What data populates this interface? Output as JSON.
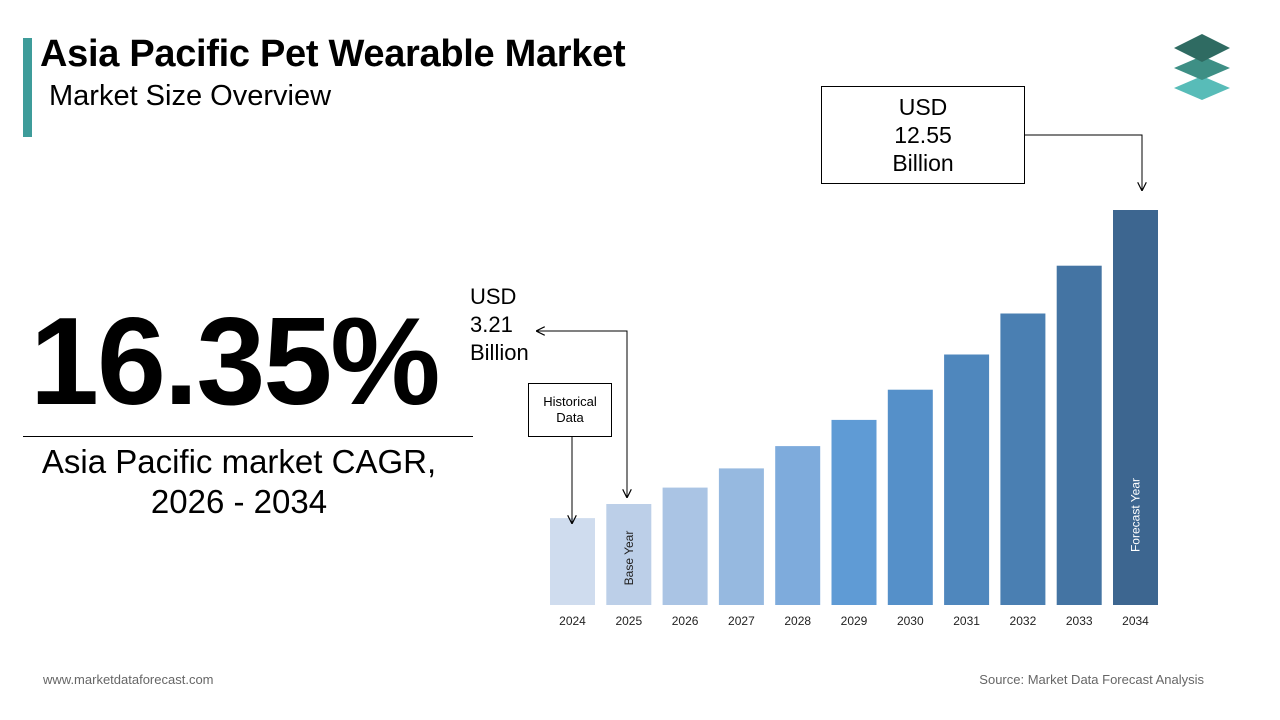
{
  "header": {
    "title": "Asia Pacific Pet Wearable Market",
    "subtitle": "Market Size Overview"
  },
  "logo": {
    "icon": "stacked-layers-logo-icon",
    "colors": [
      "#2f6b62",
      "#3e8f85",
      "#58bcb8"
    ]
  },
  "cagr": {
    "value": "16.35%",
    "label_line1": "Asia Pacific market CAGR,",
    "label_line2": "2026 - 2034"
  },
  "callouts": {
    "final": {
      "line1": "USD",
      "line2": "12.55",
      "line3": "Billion"
    },
    "base": {
      "line1": "USD",
      "line2": "3.21",
      "line3": "Billion"
    },
    "historical": {
      "line1": "Historical",
      "line2": "Data"
    }
  },
  "footer": {
    "website": "www.marketdataforecast.com",
    "source": "Source: Market Data Forecast Analysis"
  },
  "chart_data": {
    "type": "bar",
    "categories": [
      "2024",
      "2025",
      "2026",
      "2027",
      "2028",
      "2029",
      "2030",
      "2031",
      "2032",
      "2033",
      "2034"
    ],
    "values": [
      2.76,
      3.21,
      3.73,
      4.34,
      5.05,
      5.88,
      6.84,
      7.96,
      9.26,
      10.78,
      12.55
    ],
    "bar_colors": [
      "#cfdcee",
      "#bccfe8",
      "#aac4e4",
      "#96b9e0",
      "#7eabdc",
      "#5f9bd5",
      "#5590c9",
      "#4f87bd",
      "#4a7fb2",
      "#4474a3",
      "#3d6690"
    ],
    "bar_labels": {
      "2025": "Base Year",
      "2034": "Forecast Year"
    },
    "ylim": [
      0,
      13
    ]
  }
}
